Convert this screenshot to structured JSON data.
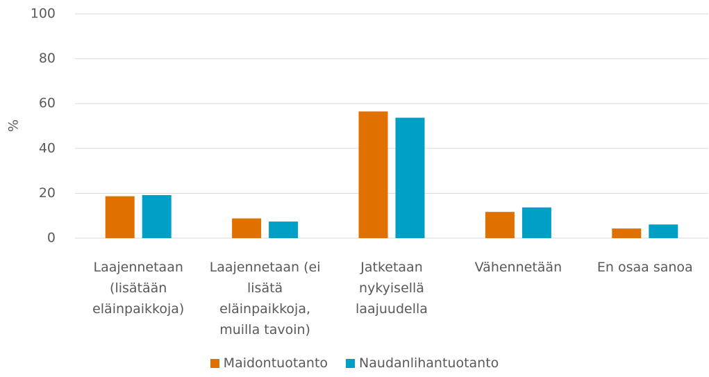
{
  "chart_data": {
    "type": "bar",
    "ylabel": "%",
    "categories": [
      "Laajennetaan (lisätään eläinpaikkoja)",
      "Laajennetaan (ei lisätä eläinpaikkoja, muilla tavoin)",
      "Jatketaan nykyisellä laajuudella",
      "Vähennetään",
      "En osaa sanoa"
    ],
    "series": [
      {
        "name": "Maidontuotanto",
        "color": "#e07000",
        "values": [
          18.7,
          8.8,
          56.5,
          11.7,
          4.3
        ]
      },
      {
        "name": "Naudanlihantuotanto",
        "color": "#00a0c6",
        "values": [
          19.2,
          7.4,
          53.7,
          13.7,
          6.1
        ]
      }
    ],
    "ylim": [
      0,
      100
    ],
    "yticks": [
      0,
      20,
      40,
      60,
      80,
      100
    ],
    "grid": true,
    "legend": "bottom"
  }
}
